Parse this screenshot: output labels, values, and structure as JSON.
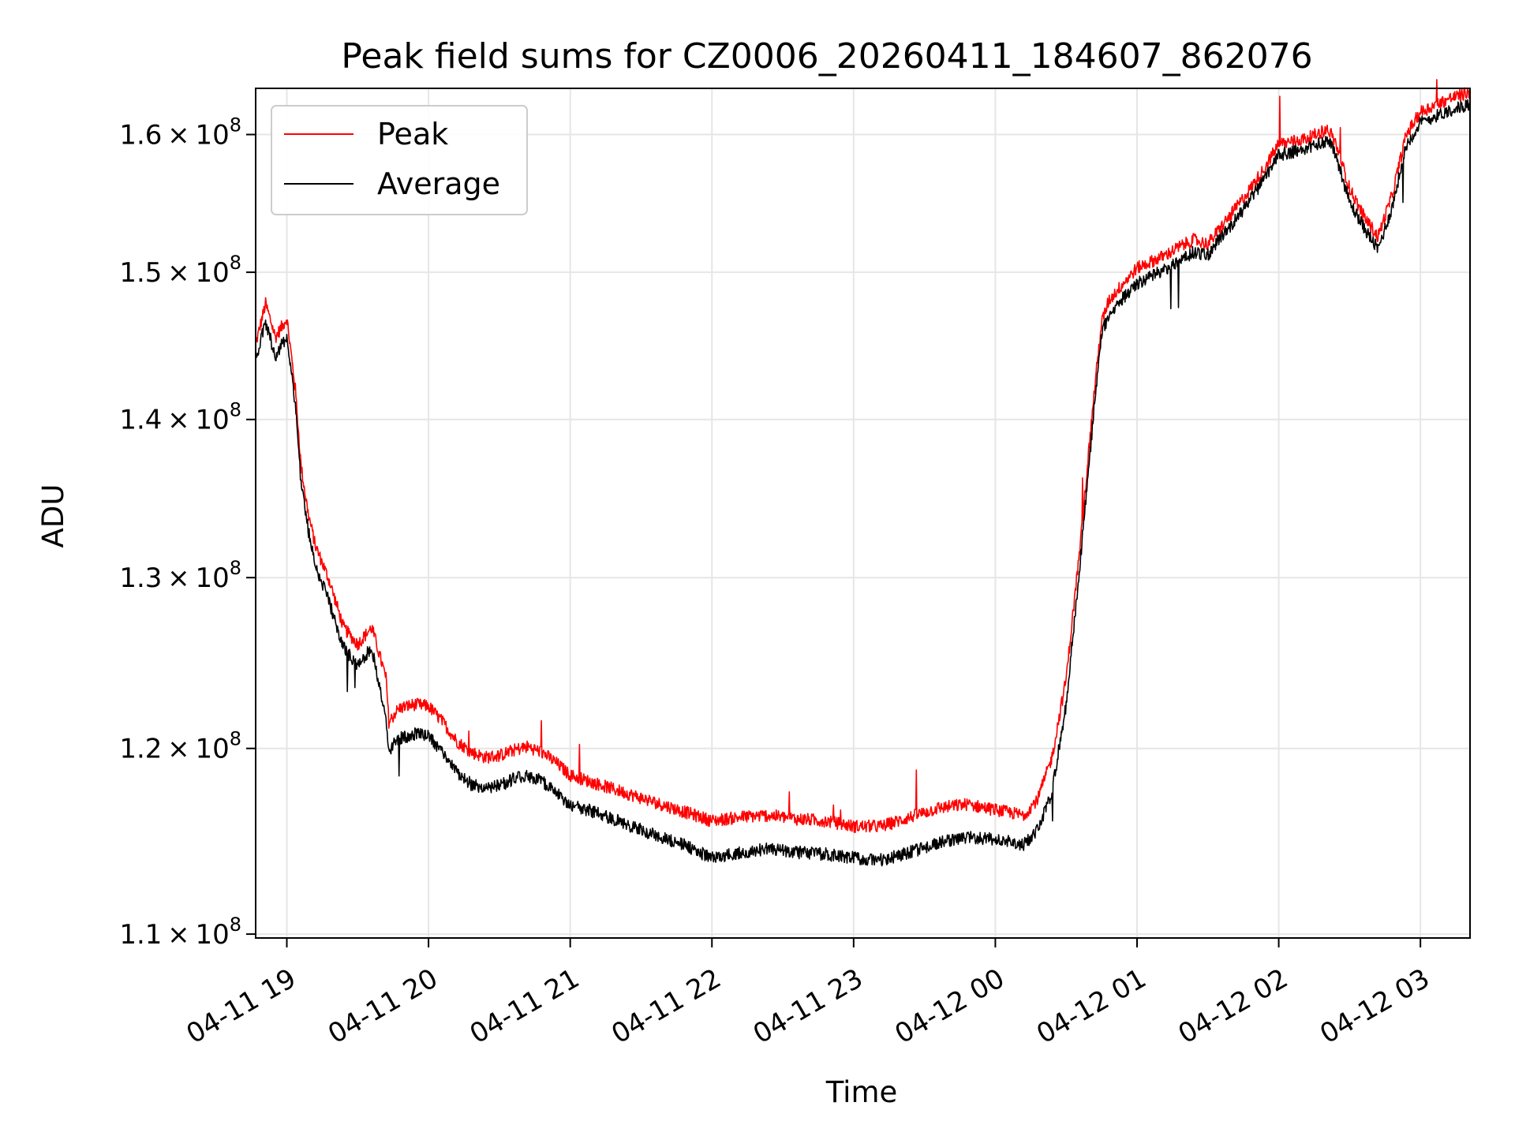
{
  "chart_data": {
    "type": "line",
    "title": "Peak field sums for CZ0006_20260411_184607_862076",
    "xlabel": "Time",
    "ylabel": "ADU",
    "yscale": "log",
    "grid": true,
    "legend_position": "upper-left",
    "x_unit": "hours since 2026-04-11 19:00",
    "xlim": [
      -0.22,
      8.35
    ],
    "ylim": [
      109800000,
      163500000
    ],
    "x_ticks": [
      {
        "value": 0,
        "label": "04-11 19"
      },
      {
        "value": 1,
        "label": "04-11 20"
      },
      {
        "value": 2,
        "label": "04-11 21"
      },
      {
        "value": 3,
        "label": "04-11 22"
      },
      {
        "value": 4,
        "label": "04-11 23"
      },
      {
        "value": 5,
        "label": "04-12 00"
      },
      {
        "value": 6,
        "label": "04-12 01"
      },
      {
        "value": 7,
        "label": "04-12 02"
      },
      {
        "value": 8,
        "label": "04-12 03"
      }
    ],
    "y_ticks": [
      {
        "value": 110000000,
        "mantissa": "1.1",
        "exponent": "8"
      },
      {
        "value": 120000000,
        "mantissa": "1.2",
        "exponent": "8"
      },
      {
        "value": 130000000,
        "mantissa": "1.3",
        "exponent": "8"
      },
      {
        "value": 140000000,
        "mantissa": "1.4",
        "exponent": "8"
      },
      {
        "value": 150000000,
        "mantissa": "1.5",
        "exponent": "8"
      },
      {
        "value": 160000000,
        "mantissa": "1.6",
        "exponent": "8"
      }
    ],
    "series": [
      {
        "name": "Peak",
        "color": "#ff0000",
        "x": [
          -0.22,
          -0.15,
          -0.08,
          0.0,
          0.06,
          0.1,
          0.15,
          0.2,
          0.3,
          0.4,
          0.5,
          0.6,
          0.7,
          0.72,
          0.75,
          0.76,
          0.8,
          0.9,
          1.0,
          1.1,
          1.2,
          1.3,
          1.4,
          1.5,
          1.6,
          1.7,
          1.8,
          1.9,
          2.0,
          2.2,
          2.4,
          2.6,
          2.8,
          3.0,
          3.2,
          3.4,
          3.6,
          3.8,
          4.0,
          4.2,
          4.4,
          4.6,
          4.8,
          5.0,
          5.2,
          5.3,
          5.4,
          5.5,
          5.6,
          5.7,
          5.75,
          5.8,
          5.9,
          6.0,
          6.2,
          6.3,
          6.4,
          6.5,
          6.6,
          6.7,
          6.8,
          6.9,
          7.0,
          7.2,
          7.3,
          7.35,
          7.4,
          7.5,
          7.6,
          7.7,
          7.8,
          7.9,
          8.0,
          8.2,
          8.35
        ],
        "y": [
          145000000,
          147800000,
          145500000,
          146800000,
          142000000,
          137000000,
          134000000,
          132000000,
          129800000,
          127000000,
          126000000,
          127000000,
          124000000,
          121500000,
          121800000,
          122000000,
          122300000,
          122500000,
          122400000,
          121500000,
          120400000,
          119800000,
          119500000,
          119600000,
          119900000,
          120100000,
          119800000,
          119200000,
          118500000,
          118000000,
          117500000,
          117000000,
          116500000,
          116000000,
          116200000,
          116300000,
          116100000,
          116000000,
          115700000,
          115700000,
          116200000,
          116700000,
          116900000,
          116600000,
          116300000,
          117200000,
          119500000,
          124000000,
          132000000,
          142000000,
          146500000,
          148000000,
          149200000,
          150300000,
          151200000,
          151800000,
          152300000,
          152000000,
          153300000,
          154600000,
          156000000,
          157500000,
          159300000,
          159700000,
          160200000,
          160400000,
          159400000,
          156000000,
          154000000,
          152500000,
          155500000,
          160000000,
          161700000,
          162700000,
          163200000
        ]
      },
      {
        "name": "Average",
        "color": "#000000",
        "x": [
          -0.22,
          -0.15,
          -0.08,
          0.0,
          0.06,
          0.1,
          0.15,
          0.2,
          0.3,
          0.4,
          0.5,
          0.6,
          0.7,
          0.72,
          0.75,
          0.76,
          0.8,
          0.9,
          1.0,
          1.1,
          1.2,
          1.3,
          1.4,
          1.5,
          1.6,
          1.7,
          1.8,
          1.9,
          2.0,
          2.2,
          2.4,
          2.6,
          2.8,
          3.0,
          3.2,
          3.4,
          3.6,
          3.8,
          4.0,
          4.2,
          4.4,
          4.6,
          4.8,
          5.0,
          5.2,
          5.3,
          5.4,
          5.5,
          5.6,
          5.7,
          5.75,
          5.8,
          5.9,
          6.0,
          6.2,
          6.3,
          6.4,
          6.5,
          6.6,
          6.7,
          6.8,
          6.9,
          7.0,
          7.2,
          7.3,
          7.35,
          7.4,
          7.5,
          7.6,
          7.7,
          7.8,
          7.9,
          8.0,
          8.2,
          8.35
        ],
        "y": [
          144000000,
          146500000,
          144200000,
          145600000,
          141000000,
          136000000,
          133000000,
          130800000,
          128500000,
          125800000,
          124800000,
          125800000,
          121600000,
          119800000,
          120100000,
          120300000,
          120600000,
          120800000,
          120700000,
          119800000,
          118700000,
          118000000,
          117800000,
          117900000,
          118300000,
          118500000,
          118200000,
          117500000,
          116900000,
          116400000,
          115800000,
          115200000,
          114700000,
          114000000,
          114300000,
          114500000,
          114300000,
          114200000,
          114000000,
          113900000,
          114300000,
          114800000,
          115100000,
          115000000,
          114700000,
          115500000,
          117600000,
          122500000,
          131000000,
          141000000,
          145800000,
          147000000,
          148200000,
          149200000,
          150200000,
          150800000,
          151400000,
          151200000,
          152600000,
          153800000,
          155200000,
          156700000,
          158500000,
          158900000,
          159400000,
          159600000,
          158600000,
          155000000,
          153200000,
          151600000,
          154600000,
          159200000,
          160900000,
          161800000,
          162300000
        ]
      }
    ]
  }
}
